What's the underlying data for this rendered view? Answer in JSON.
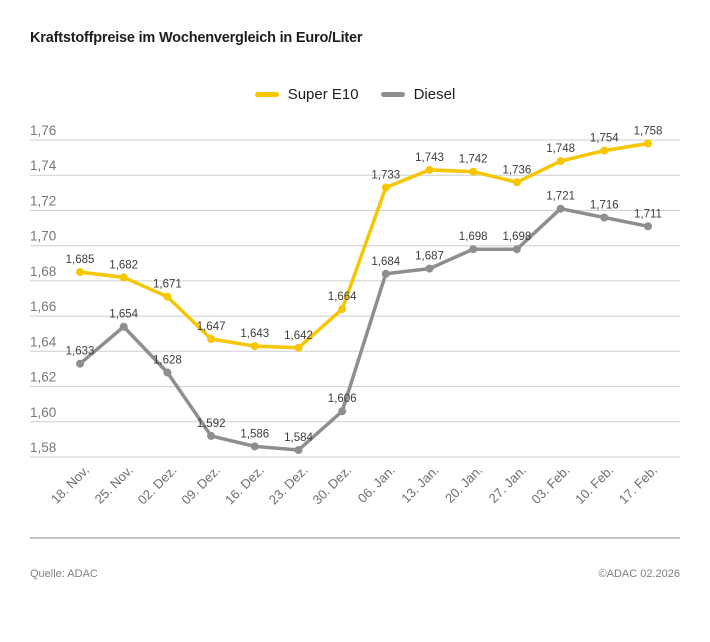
{
  "title": "Kraftstoffpreise im Wochenvergleich in Euro/Liter",
  "legend": {
    "items": [
      {
        "label": "Super E10",
        "color": "#F6C600"
      },
      {
        "label": "Diesel",
        "color": "#8E8E8E"
      }
    ]
  },
  "footer": {
    "source": "Quelle: ADAC",
    "copyright": "©ADAC 02.2026"
  },
  "chart_data": {
    "type": "line",
    "title": "Kraftstoffpreise im Wochenvergleich in Euro/Liter",
    "categories": [
      "18. Nov.",
      "25. Nov.",
      "02. Dez.",
      "09. Dez.",
      "16. Dez.",
      "23. Dez.",
      "30. Dez.",
      "06. Jan.",
      "13. Jan.",
      "20. Jan.",
      "27. Jan.",
      "03. Feb.",
      "10. Feb.",
      "17. Feb."
    ],
    "series": [
      {
        "name": "Super E10",
        "color": "#F6C600",
        "values": [
          1.685,
          1.682,
          1.671,
          1.647,
          1.643,
          1.642,
          1.664,
          1.733,
          1.743,
          1.742,
          1.736,
          1.748,
          1.754,
          1.758
        ]
      },
      {
        "name": "Diesel",
        "color": "#8E8E8E",
        "values": [
          1.633,
          1.654,
          1.628,
          1.592,
          1.586,
          1.584,
          1.606,
          1.684,
          1.687,
          1.698,
          1.698,
          1.721,
          1.716,
          1.711
        ]
      }
    ],
    "ylim": [
      1.58,
      1.76
    ],
    "y_tick_step": 0.02,
    "y_tick_labels": [
      "1,76",
      "1,74",
      "1,72",
      "1,70",
      "1,68",
      "1,66",
      "1,64",
      "1,62",
      "1,60",
      "1,58"
    ],
    "grid": true,
    "legend_position": "top-center",
    "value_labels": true,
    "decimal_separator": ","
  }
}
